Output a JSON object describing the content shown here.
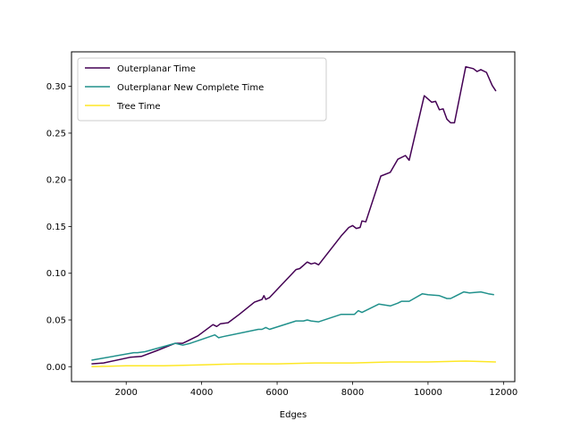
{
  "chart_data": {
    "type": "line",
    "title": "",
    "xlabel": "Edges",
    "ylabel": "",
    "xlim": [
      550,
      12300
    ],
    "ylim": [
      -0.016,
      0.337
    ],
    "x_ticks": [
      2000,
      4000,
      6000,
      8000,
      10000,
      12000
    ],
    "y_ticks": [
      0.0,
      0.05,
      0.1,
      0.15,
      0.2,
      0.25,
      0.3
    ],
    "x_tick_labels": [
      "2000",
      "4000",
      "6000",
      "8000",
      "10000",
      "12000"
    ],
    "y_tick_labels": [
      "0.00",
      "0.05",
      "0.10",
      "0.15",
      "0.20",
      "0.25",
      "0.30"
    ],
    "grid": false,
    "legend_position": "top-left",
    "series": [
      {
        "name": "Outerplanar Time",
        "color": "#440154",
        "points": [
          [
            1080,
            0.003
          ],
          [
            1400,
            0.004
          ],
          [
            2100,
            0.01
          ],
          [
            2400,
            0.011
          ],
          [
            2800,
            0.017
          ],
          [
            3300,
            0.025
          ],
          [
            3500,
            0.025
          ],
          [
            3600,
            0.027
          ],
          [
            3900,
            0.033
          ],
          [
            4300,
            0.045
          ],
          [
            4400,
            0.043
          ],
          [
            4500,
            0.046
          ],
          [
            4700,
            0.047
          ],
          [
            5000,
            0.056
          ],
          [
            5400,
            0.069
          ],
          [
            5600,
            0.072
          ],
          [
            5650,
            0.076
          ],
          [
            5700,
            0.072
          ],
          [
            5800,
            0.074
          ],
          [
            6500,
            0.104
          ],
          [
            6600,
            0.105
          ],
          [
            6800,
            0.112
          ],
          [
            6900,
            0.11
          ],
          [
            7000,
            0.111
          ],
          [
            7100,
            0.109
          ],
          [
            7700,
            0.14
          ],
          [
            7900,
            0.149
          ],
          [
            8000,
            0.151
          ],
          [
            8100,
            0.148
          ],
          [
            8200,
            0.149
          ],
          [
            8250,
            0.156
          ],
          [
            8350,
            0.155
          ],
          [
            8750,
            0.204
          ],
          [
            9000,
            0.208
          ],
          [
            9200,
            0.222
          ],
          [
            9400,
            0.226
          ],
          [
            9500,
            0.221
          ],
          [
            9900,
            0.29
          ],
          [
            10100,
            0.283
          ],
          [
            10200,
            0.284
          ],
          [
            10300,
            0.275
          ],
          [
            10400,
            0.276
          ],
          [
            10500,
            0.265
          ],
          [
            10600,
            0.261
          ],
          [
            10700,
            0.261
          ],
          [
            11000,
            0.321
          ],
          [
            11200,
            0.319
          ],
          [
            11300,
            0.316
          ],
          [
            11400,
            0.318
          ],
          [
            11550,
            0.315
          ],
          [
            11700,
            0.301
          ],
          [
            11800,
            0.295
          ]
        ]
      },
      {
        "name": "Outerplanar New Complete Time",
        "color": "#21918c",
        "points": [
          [
            1080,
            0.007
          ],
          [
            2200,
            0.015
          ],
          [
            2300,
            0.015
          ],
          [
            2500,
            0.016
          ],
          [
            3300,
            0.025
          ],
          [
            3500,
            0.023
          ],
          [
            3700,
            0.025
          ],
          [
            4350,
            0.034
          ],
          [
            4450,
            0.031
          ],
          [
            4550,
            0.032
          ],
          [
            5500,
            0.04
          ],
          [
            5600,
            0.04
          ],
          [
            5700,
            0.042
          ],
          [
            5800,
            0.04
          ],
          [
            6500,
            0.049
          ],
          [
            6700,
            0.049
          ],
          [
            6800,
            0.05
          ],
          [
            6900,
            0.049
          ],
          [
            7100,
            0.048
          ],
          [
            7700,
            0.056
          ],
          [
            8050,
            0.056
          ],
          [
            8150,
            0.06
          ],
          [
            8250,
            0.058
          ],
          [
            8700,
            0.067
          ],
          [
            9000,
            0.065
          ],
          [
            9200,
            0.068
          ],
          [
            9300,
            0.07
          ],
          [
            9500,
            0.07
          ],
          [
            9850,
            0.078
          ],
          [
            10000,
            0.077
          ],
          [
            10300,
            0.076
          ],
          [
            10500,
            0.073
          ],
          [
            10600,
            0.073
          ],
          [
            10950,
            0.08
          ],
          [
            11100,
            0.079
          ],
          [
            11400,
            0.08
          ],
          [
            11600,
            0.078
          ],
          [
            11750,
            0.077
          ]
        ]
      },
      {
        "name": "Tree Time",
        "color": "#fde725",
        "points": [
          [
            1080,
            0.0
          ],
          [
            2000,
            0.001
          ],
          [
            3000,
            0.001
          ],
          [
            4000,
            0.002
          ],
          [
            5000,
            0.003
          ],
          [
            6000,
            0.003
          ],
          [
            7000,
            0.004
          ],
          [
            8000,
            0.004
          ],
          [
            9000,
            0.005
          ],
          [
            10000,
            0.005
          ],
          [
            11000,
            0.006
          ],
          [
            11800,
            0.005
          ]
        ]
      }
    ]
  }
}
